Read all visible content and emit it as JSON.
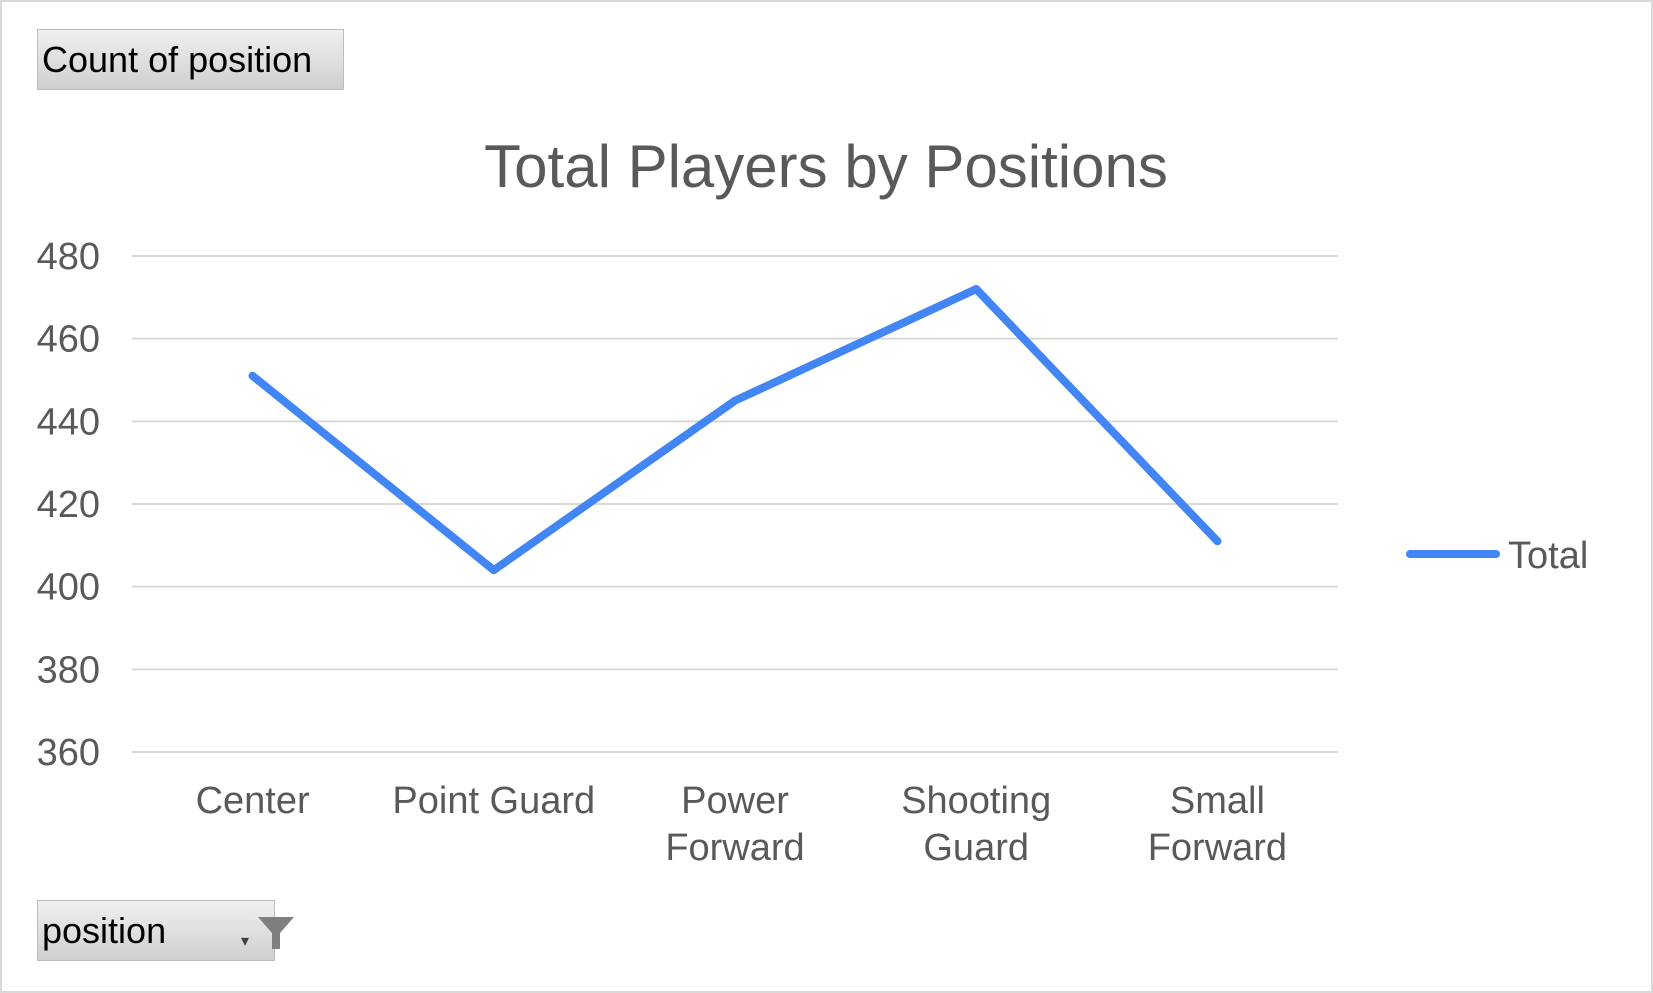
{
  "values_field": {
    "label": "Count of position"
  },
  "axis_field": {
    "label": "position",
    "icon": "filter-icon"
  },
  "chart_data": {
    "type": "line",
    "title": "Total Players by Positions",
    "categories": [
      "Center",
      "Point Guard",
      "Power Forward",
      "Shooting Guard",
      "Small Forward"
    ],
    "category_lines": [
      [
        "Center"
      ],
      [
        "Point Guard"
      ],
      [
        "Power",
        "Forward"
      ],
      [
        "Shooting",
        "Guard"
      ],
      [
        "Small",
        "Forward"
      ]
    ],
    "series": [
      {
        "name": "Total",
        "values": [
          451,
          404,
          445,
          472,
          411
        ],
        "color": "#4285f4"
      }
    ],
    "ylim": [
      360,
      480
    ],
    "yticks": [
      360,
      380,
      400,
      420,
      440,
      460,
      480
    ],
    "xlabel": "",
    "ylabel": "",
    "grid": true,
    "gridline_color": "#d9d9d9",
    "legend_position": "right"
  }
}
